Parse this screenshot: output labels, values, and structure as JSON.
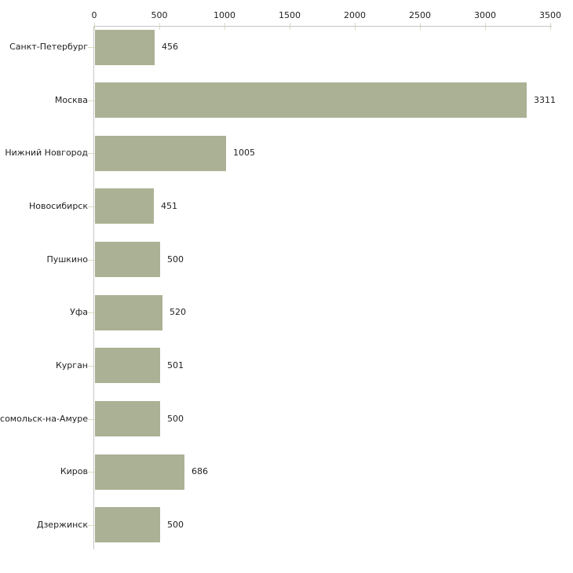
{
  "chart_data": {
    "type": "bar",
    "orientation": "horizontal",
    "title": "",
    "xlabel": "",
    "ylabel": "",
    "axis_position": "top",
    "grid": false,
    "legend": false,
    "xlim": [
      0,
      3500
    ],
    "x_ticks": [
      0,
      500,
      1000,
      1500,
      2000,
      2500,
      3000,
      3500
    ],
    "categories": [
      "Санкт-Петербург",
      "Москва",
      "Нижний Новгород",
      "Новосибирск",
      "Пушкино",
      "Уфа",
      "Курган",
      "мсомольск-на-Амуре",
      "Киров",
      "Дзержинск"
    ],
    "values": [
      456,
      3311,
      1005,
      451,
      500,
      520,
      501,
      500,
      686,
      500
    ],
    "value_labels": [
      "456",
      "3311",
      "1005",
      "451",
      "500",
      "520",
      "501",
      "500",
      "686",
      "500"
    ],
    "colors": {
      "bar": "#abb194",
      "axis_line": "#c6c6c6",
      "tick_mark": "#d9dcc0",
      "text": "#1f1f1f",
      "background": "#ffffff"
    }
  }
}
